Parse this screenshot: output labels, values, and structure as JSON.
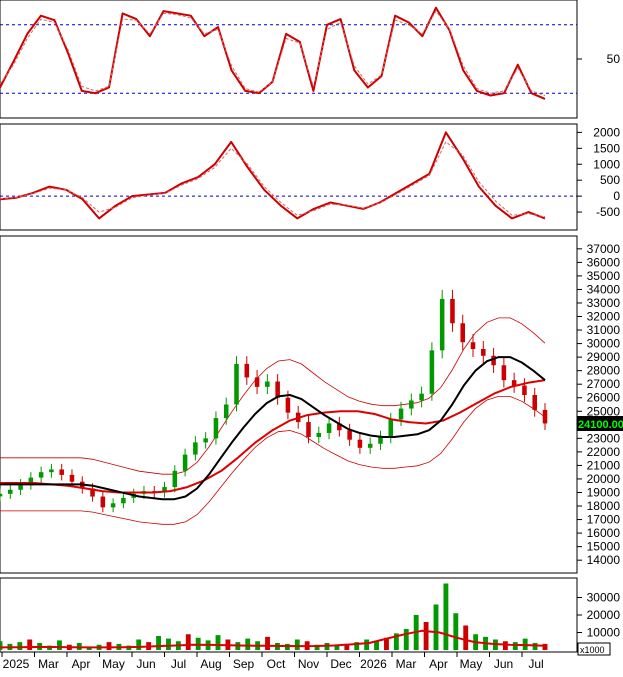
{
  "chart_data": [
    {
      "type": "line",
      "panel": "stochastic-oscillator",
      "yticks": [
        "50"
      ],
      "ylim": [
        0,
        100
      ],
      "reference_levels": [
        80,
        20
      ],
      "series": [
        {
          "color": "#cc0000",
          "values": [
            25,
            48,
            72,
            88,
            84,
            55,
            22,
            20,
            25,
            90,
            85,
            70,
            92,
            90,
            88,
            70,
            78,
            40,
            22,
            20,
            30,
            72,
            65,
            22,
            80,
            85,
            40,
            25,
            35,
            88,
            82,
            70,
            95,
            75,
            40,
            22,
            18,
            20,
            45,
            20,
            15
          ]
        },
        {
          "color": "#e06060",
          "style": "dashed",
          "values": [
            28,
            45,
            68,
            85,
            82,
            58,
            26,
            22,
            26,
            85,
            84,
            72,
            90,
            89,
            86,
            72,
            76,
            44,
            24,
            21,
            30,
            68,
            64,
            26,
            76,
            82,
            44,
            28,
            36,
            84,
            80,
            72,
            92,
            76,
            44,
            24,
            20,
            22,
            42,
            22,
            18
          ]
        }
      ]
    },
    {
      "type": "line",
      "panel": "macd",
      "yticks": [
        "2000",
        "1500",
        "1000",
        "500",
        "0",
        "-500"
      ],
      "ylim": [
        -1000,
        2200
      ],
      "reference_levels": [
        0
      ],
      "series": [
        {
          "color": "#cc0000",
          "values": [
            -100,
            -50,
            100,
            300,
            200,
            -100,
            -700,
            -300,
            0,
            50,
            100,
            400,
            600,
            1000,
            1700,
            900,
            200,
            -300,
            -700,
            -400,
            -200,
            -300,
            -400,
            -200,
            100,
            400,
            700,
            2000,
            1200,
            300,
            -300,
            -700,
            -500,
            -700
          ]
        },
        {
          "color": "#e06060",
          "style": "dashed",
          "values": [
            -80,
            -40,
            80,
            250,
            200,
            -50,
            -500,
            -350,
            -50,
            30,
            90,
            350,
            550,
            900,
            1500,
            1000,
            300,
            -200,
            -600,
            -450,
            -250,
            -280,
            -380,
            -220,
            60,
            350,
            650,
            1700,
            1300,
            450,
            -150,
            -600,
            -550,
            -650
          ]
        }
      ]
    },
    {
      "type": "candlestick",
      "panel": "price",
      "yticks": [
        "37000",
        "36000",
        "35000",
        "34000",
        "33000",
        "32000",
        "31000",
        "30000",
        "29000",
        "28000",
        "27000",
        "26000",
        "25000",
        "24000",
        "23000",
        "22000",
        "21000",
        "20000",
        "19000",
        "18000",
        "17000",
        "16000",
        "15000",
        "14000"
      ],
      "ylim": [
        13200,
        37800
      ],
      "last_price_label": "24100.00",
      "close": [
        18900,
        19200,
        19600,
        20100,
        20500,
        20700,
        20300,
        19800,
        19300,
        18700,
        17900,
        18200,
        18600,
        18900,
        19100,
        19000,
        19400,
        20600,
        21800,
        22700,
        23000,
        24500,
        25500,
        28500,
        27500,
        26800,
        27200,
        26000,
        24900,
        24200,
        23100,
        23400,
        24100,
        23600,
        22900,
        22300,
        22600,
        23100,
        24400,
        25200,
        25800,
        26300,
        29500,
        33300,
        31500,
        30100,
        29600,
        29100,
        28400,
        27300,
        26900,
        26200,
        25100,
        24100
      ],
      "ma_black": [
        19600,
        19600,
        19600,
        19600,
        19600,
        19600,
        19600,
        19600,
        19500,
        19300,
        19100,
        18900,
        18700,
        18600,
        18500,
        18500,
        18700,
        19300,
        20300,
        21500,
        22700,
        23800,
        24800,
        25600,
        26100,
        26200,
        25900,
        25300,
        24700,
        24200,
        23700,
        23400,
        23200,
        23100,
        23100,
        23200,
        23300,
        23600,
        24300,
        25500,
        26900,
        28000,
        28700,
        29000,
        29000,
        28600,
        28000,
        27300
      ],
      "ma_red": [
        19700,
        19700,
        19700,
        19600,
        19500,
        19300,
        19100,
        19000,
        19000,
        19000,
        19100,
        19400,
        19900,
        20600,
        21600,
        22700,
        23600,
        24300,
        24700,
        24900,
        25000,
        25000,
        24800,
        24400,
        24200,
        24100,
        24300,
        24900,
        25600,
        26300,
        26800,
        27100,
        27300
      ]
    },
    {
      "type": "bar",
      "panel": "volume",
      "yticks": [
        "30000",
        "20000",
        "10000"
      ],
      "ylim": [
        0,
        40000
      ],
      "unit_label": "x1000",
      "volume_ma": [
        1500,
        1600,
        1700,
        1700,
        1600,
        1500,
        1500,
        1600,
        1800,
        2200,
        2600,
        3000,
        2900,
        2700,
        2500,
        2400,
        2300,
        2200,
        2300,
        2600,
        3200,
        4000,
        6500,
        9000,
        11000,
        10000,
        7000,
        4500,
        3500,
        3000,
        2800,
        2400
      ],
      "volume": [
        5000,
        3500,
        4500,
        6000,
        4000,
        2500,
        5500,
        3000,
        4000,
        2000,
        3000,
        4500,
        3500,
        2500,
        6000,
        4500,
        8000,
        6500,
        5000,
        9000,
        7000,
        5500,
        8500,
        6000,
        4500,
        6500,
        5000,
        7500,
        4000,
        3500,
        6000,
        5000,
        3000,
        4000,
        2500,
        3500,
        4500,
        6000,
        5000,
        7000,
        9500,
        12000,
        20000,
        16000,
        26000,
        38000,
        21000,
        14000,
        9000,
        7500,
        6000,
        5000,
        4500,
        6500,
        4000,
        3500
      ]
    }
  ],
  "xaxis": {
    "labels": [
      "2025",
      "Mar",
      "Apr",
      "May",
      "Jun",
      "Jul",
      "Aug",
      "Sep",
      "Oct",
      "Nov",
      "Dec",
      "2026",
      "Mar",
      "Apr",
      "May",
      "Jun",
      "Jul"
    ]
  },
  "colors": {
    "up": "#009900",
    "down": "#cc0000",
    "ma_black": "#000000",
    "ma_red": "#dd0000",
    "reference": "#0000cc",
    "price_tag_bg": "#000000",
    "price_tag_fg": "#00ff00"
  }
}
